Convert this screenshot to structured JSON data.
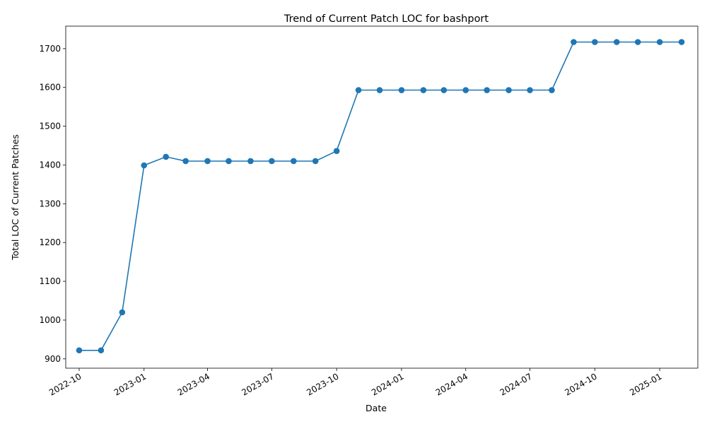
{
  "chart_data": {
    "type": "line",
    "title": "Trend of Current Patch LOC for bashport",
    "xlabel": "Date",
    "ylabel": "Total LOC of Current Patches",
    "x_range": [
      "2022-09-12",
      "2025-02-24"
    ],
    "ylim": [
      876,
      1758
    ],
    "y_ticks": [
      900,
      1000,
      1100,
      1200,
      1300,
      1400,
      1500,
      1600,
      1700
    ],
    "x_ticks": [
      "2022-10",
      "2023-01",
      "2023-04",
      "2023-07",
      "2023-10",
      "2024-01",
      "2024-04",
      "2024-07",
      "2024-10",
      "2025-01"
    ],
    "grid": false,
    "legend": "none",
    "color": "#1f77b4",
    "marker": "circle",
    "series": [
      {
        "x": [
          "2022-10-01",
          "2022-11-01",
          "2022-12-01",
          "2023-01-01",
          "2023-02-01",
          "2023-03-01",
          "2023-04-01",
          "2023-05-01",
          "2023-06-01",
          "2023-07-01",
          "2023-08-01",
          "2023-09-01",
          "2023-10-01",
          "2023-11-01",
          "2023-12-01",
          "2024-01-01",
          "2024-02-01",
          "2024-03-01",
          "2024-04-01",
          "2024-05-01",
          "2024-06-01",
          "2024-07-01",
          "2024-08-01",
          "2024-09-01",
          "2024-10-01",
          "2024-11-01",
          "2024-12-01",
          "2025-01-01",
          "2025-02-01"
        ],
        "values": [
          922,
          922,
          1020,
          1399,
          1421,
          1410,
          1410,
          1410,
          1410,
          1410,
          1410,
          1410,
          1436,
          1593,
          1593,
          1593,
          1593,
          1593,
          1593,
          1593,
          1593,
          1593,
          1593,
          1717,
          1717,
          1717,
          1717,
          1717,
          1717
        ]
      }
    ]
  }
}
